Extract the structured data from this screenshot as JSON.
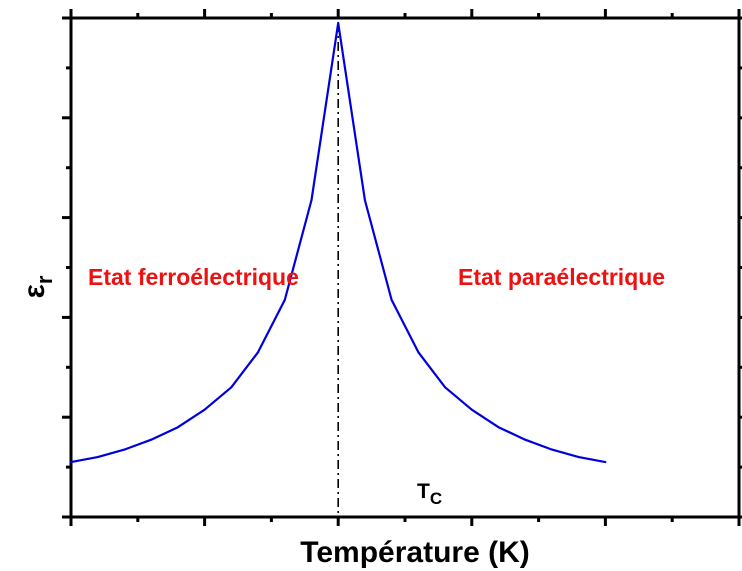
{
  "chart_data": {
    "type": "line",
    "xlabel": "Température (K)",
    "ylabel": "ε",
    "ylabel_sub": "r",
    "xlim": [
      -1.0,
      1.5
    ],
    "ylim": [
      0.0,
      10.0
    ],
    "x_ticks_labeled": false,
    "y_ticks_labeled": false,
    "grid": false,
    "series": [
      {
        "color": "#0000dd",
        "x": [
          -1.0,
          -0.9,
          -0.8,
          -0.7,
          -0.6,
          -0.5,
          -0.4,
          -0.3,
          -0.2,
          -0.1,
          0.0,
          0.1,
          0.2,
          0.3,
          0.4,
          0.5,
          0.6,
          0.7,
          0.8,
          0.9,
          1.0
        ],
        "y": [
          1.1,
          1.2,
          1.35,
          1.55,
          1.8,
          2.15,
          2.6,
          3.3,
          4.35,
          6.35,
          9.9,
          6.35,
          4.35,
          3.3,
          2.6,
          2.15,
          1.8,
          1.55,
          1.35,
          1.2,
          1.1
        ]
      }
    ],
    "annotations": [
      {
        "id": "ferro",
        "text": "Etat ferroélectrique",
        "color": "#ee1111"
      },
      {
        "id": "para",
        "text": "Etat paraélectrique",
        "color": "#ee1111"
      },
      {
        "id": "tc",
        "text": "T",
        "sub": "C",
        "x": 0.0
      }
    ]
  }
}
